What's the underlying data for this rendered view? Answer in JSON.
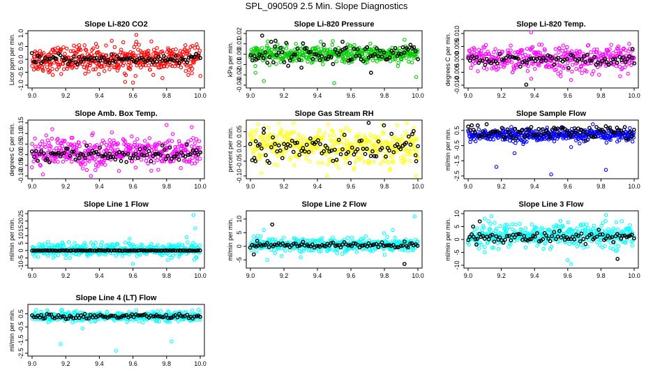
{
  "page": {
    "title": "SPL_090509  2.5 Min. Slope Diagnostics"
  },
  "chart_data": [
    {
      "type": "scatter",
      "title": "Slope Li-820 CO2",
      "ylabel": "Licor ppm per min.",
      "xlim": [
        9.0,
        10.0
      ],
      "ylim": [
        -1.0,
        1.0
      ],
      "xticks": [
        "9.0",
        "9.2",
        "9.4",
        "9.6",
        "9.8",
        "10.0"
      ],
      "yticks": [
        "-1.0",
        "-0.5",
        "0.0",
        "0.5",
        "1.0"
      ],
      "color": "#ff0000",
      "series": [
        {
          "values_desc": "main",
          "color": "#ff0000",
          "center": 0.0,
          "spread": 0.25,
          "n": 420,
          "outliers": [
            [
              9.55,
              -0.55
            ],
            [
              9.6,
              -0.9
            ],
            [
              9.38,
              0.6
            ],
            [
              9.62,
              0.95
            ],
            [
              9.1,
              -0.5
            ],
            [
              9.7,
              -0.4
            ],
            [
              9.28,
              0.55
            ]
          ]
        },
        {
          "values_desc": "reference",
          "color": "#000000",
          "center": 0.0,
          "spread": 0.1,
          "n": 90,
          "outliers": []
        }
      ]
    },
    {
      "type": "scatter",
      "title": "Slope Li-820 Pressure",
      "ylabel": "kPa per min.",
      "xlim": [
        9.0,
        10.0
      ],
      "ylim": [
        -0.03,
        0.02
      ],
      "xticks": [
        "9.0",
        "9.2",
        "9.4",
        "9.6",
        "9.8",
        "10.0"
      ],
      "yticks": [
        "-0.03",
        "-0.02",
        "-0.01",
        "0.00",
        "0.01",
        "0.02"
      ],
      "color": "#00cc00",
      "series": [
        {
          "values_desc": "main",
          "color": "#00cc00",
          "center": 0.0,
          "spread": 0.004,
          "n": 420,
          "outliers": [
            [
              9.5,
              -0.028
            ],
            [
              9.03,
              -0.018
            ],
            [
              9.08,
              -0.026
            ],
            [
              9.99,
              -0.022
            ],
            [
              9.42,
              0.012
            ],
            [
              9.92,
              0.014
            ]
          ]
        },
        {
          "values_desc": "reference",
          "color": "#000000",
          "center": 0.0,
          "spread": 0.005,
          "n": 90,
          "outliers": [
            [
              9.07,
              0.018
            ],
            [
              9.15,
              0.013
            ],
            [
              9.55,
              0.012
            ],
            [
              9.72,
              -0.018
            ]
          ]
        }
      ]
    },
    {
      "type": "scatter",
      "title": "Slope Li-820 Temp.",
      "ylabel": "degrees C per min.",
      "xlim": [
        9.0,
        10.0
      ],
      "ylim": [
        -0.01,
        0.01
      ],
      "xticks": [
        "9.0",
        "9.2",
        "9.4",
        "9.6",
        "9.8",
        "10.0"
      ],
      "yticks": [
        "-0.010",
        "-0.005",
        "0.000",
        "0.005",
        "0.010"
      ],
      "color": "#ff00ff",
      "series": [
        {
          "values_desc": "main",
          "color": "#ff00ff",
          "center": 0.0,
          "spread": 0.0025,
          "n": 380,
          "outliers": [
            [
              9.38,
              0.0105
            ],
            [
              9.38,
              -0.0075
            ],
            [
              9.62,
              -0.008
            ],
            [
              9.97,
              0.006
            ]
          ]
        },
        {
          "values_desc": "reference",
          "color": "#000000",
          "center": 0.0,
          "spread": 0.001,
          "n": 80,
          "outliers": [
            [
              9.35,
              -0.0098
            ],
            [
              9.99,
              0.004
            ]
          ]
        }
      ]
    },
    {
      "type": "scatter",
      "title": "Slope Amb. Box Temp.",
      "ylabel": "degrees C per min.",
      "xlim": [
        9.0,
        10.0
      ],
      "ylim": [
        -0.1,
        0.15
      ],
      "xticks": [
        "9.0",
        "9.2",
        "9.4",
        "9.6",
        "9.8",
        "10.0"
      ],
      "yticks": [
        "-0.10",
        "-0.05",
        "0.00",
        "0.05",
        "0.10",
        "0.15"
      ],
      "color": "#ff00ff",
      "series": [
        {
          "values_desc": "main",
          "color": "#ff00ff",
          "center": 0.01,
          "spread": 0.035,
          "n": 420,
          "outliers": [
            [
              9.35,
              -0.1
            ],
            [
              9.8,
              0.14
            ],
            [
              9.95,
              0.13
            ],
            [
              9.12,
              0.12
            ]
          ]
        },
        {
          "values_desc": "reference",
          "color": "#000000",
          "center": 0.0,
          "spread": 0.02,
          "n": 90,
          "outliers": []
        }
      ]
    },
    {
      "type": "scatter",
      "title": "Slope Gas Stream RH",
      "ylabel": "percent per min.",
      "xlim": [
        9.0,
        10.0
      ],
      "ylim": [
        -0.1,
        0.08
      ],
      "xticks": [
        "9.0",
        "9.2",
        "9.4",
        "9.6",
        "9.8",
        "10.0"
      ],
      "yticks": [
        "-0.10",
        "-0.05",
        "0.00",
        "0.05"
      ],
      "color": "#ffff00",
      "series": [
        {
          "values_desc": "main",
          "color": "#ffff00",
          "center": 0.0,
          "spread": 0.03,
          "n": 420,
          "outliers": []
        },
        {
          "values_desc": "reference",
          "color": "#000000",
          "center": 0.0,
          "spread": 0.03,
          "n": 90,
          "outliers": [
            [
              9.03,
              -0.05
            ],
            [
              9.08,
              0.06
            ],
            [
              9.99,
              -0.05
            ]
          ]
        }
      ]
    },
    {
      "type": "scatter",
      "title": "Slope Sample Flow",
      "ylabel": "ml/min per min.",
      "xlim": [
        9.0,
        10.0
      ],
      "ylim": [
        -2.5,
        1.0
      ],
      "xticks": [
        "9.0",
        "9.2",
        "9.4",
        "9.6",
        "9.8",
        "10.0"
      ],
      "yticks": [
        "-2.5",
        "-1.5",
        "-0.5",
        "0.5"
      ],
      "color": "#0000ff",
      "series": [
        {
          "values_desc": "main",
          "color": "#0000ff",
          "center": 0.2,
          "spread": 0.2,
          "n": 420,
          "outliers": [
            [
              9.17,
              -1.9
            ],
            [
              9.83,
              -2.1
            ],
            [
              9.5,
              -2.4
            ],
            [
              9.62,
              -0.6
            ],
            [
              9.28,
              -1.0
            ]
          ]
        },
        {
          "values_desc": "reference",
          "color": "#000000",
          "center": 0.4,
          "spread": 0.25,
          "n": 90,
          "outliers": []
        }
      ]
    },
    {
      "type": "scatter",
      "title": "Slope Line 1 Flow",
      "ylabel": "ml/min per min.",
      "xlim": [
        9.0,
        10.0
      ],
      "ylim": [
        -10,
        25
      ],
      "xticks": [
        "9.0",
        "9.2",
        "9.4",
        "9.6",
        "9.8",
        "10.0"
      ],
      "yticks": [
        "-10",
        "-5",
        "0",
        "5",
        "10",
        "15",
        "20",
        "25"
      ],
      "color": "#00ffff",
      "series": [
        {
          "values_desc": "main",
          "color": "#00ffff",
          "center": 0.5,
          "spread": 2.2,
          "n": 400,
          "outliers": [
            [
              9.96,
              24
            ],
            [
              9.97,
              15
            ],
            [
              9.92,
              9
            ],
            [
              9.6,
              -9
            ],
            [
              9.58,
              8
            ],
            [
              9.2,
              -5
            ]
          ]
        },
        {
          "values_desc": "reference",
          "color": "#000000",
          "center": 0.0,
          "spread": 0.1,
          "n": 90,
          "outliers": []
        }
      ]
    },
    {
      "type": "scatter",
      "title": "Slope Line 2 Flow",
      "ylabel": "ml/min per min.",
      "xlim": [
        9.0,
        10.0
      ],
      "ylim": [
        -7,
        12
      ],
      "xticks": [
        "9.0",
        "9.2",
        "9.4",
        "9.6",
        "9.8",
        "10.0"
      ],
      "yticks": [
        "-5",
        "0",
        "5",
        "10"
      ],
      "color": "#00ffff",
      "series": [
        {
          "values_desc": "main",
          "color": "#00ffff",
          "center": 0.5,
          "spread": 1.3,
          "n": 400,
          "outliers": [
            [
              9.98,
              11
            ],
            [
              9.1,
              -5
            ],
            [
              9.08,
              6
            ],
            [
              9.85,
              6
            ],
            [
              9.3,
              -4
            ]
          ]
        },
        {
          "values_desc": "reference",
          "color": "#000000",
          "center": 0.3,
          "spread": 0.6,
          "n": 90,
          "outliers": [
            [
              9.13,
              8
            ],
            [
              9.92,
              -6.5
            ],
            [
              9.02,
              -3
            ],
            [
              9.04,
              2
            ]
          ]
        }
      ]
    },
    {
      "type": "scatter",
      "title": "Slope Line 3 Flow",
      "ylabel": "ml/min per min.",
      "xlim": [
        9.0,
        10.0
      ],
      "ylim": [
        -10,
        10
      ],
      "xticks": [
        "9.0",
        "9.2",
        "9.4",
        "9.6",
        "9.8",
        "10.0"
      ],
      "yticks": [
        "-10",
        "-5",
        "0",
        "5",
        "10"
      ],
      "color": "#00ffff",
      "series": [
        {
          "values_desc": "main",
          "color": "#00ffff",
          "center": 1.5,
          "spread": 2.2,
          "n": 400,
          "outliers": [
            [
              9.62,
              -9.5
            ],
            [
              9.6,
              -8
            ],
            [
              9.1,
              -5
            ],
            [
              9.14,
              9
            ],
            [
              9.83,
              9.5
            ]
          ]
        },
        {
          "values_desc": "reference",
          "color": "#000000",
          "center": 1.0,
          "spread": 1.0,
          "n": 90,
          "outliers": [
            [
              9.07,
              7
            ],
            [
              9.03,
              5
            ],
            [
              9.9,
              -7.5
            ],
            [
              9.05,
              -2
            ]
          ]
        }
      ]
    },
    {
      "type": "scatter",
      "title": "Slope Line 4 (LT) Flow",
      "ylabel": "ml/min per min.",
      "xlim": [
        9.0,
        10.0
      ],
      "ylim": [
        -2.5,
        1.0
      ],
      "xticks": [
        "9.0",
        "9.2",
        "9.4",
        "9.6",
        "9.8",
        "10.0"
      ],
      "yticks": [
        "-2.5",
        "-1.5",
        "-0.5",
        "0.5"
      ],
      "color": "#00ffff",
      "series": [
        {
          "values_desc": "main",
          "color": "#00ffff",
          "center": 0.3,
          "spread": 0.18,
          "n": 400,
          "outliers": [
            [
              9.17,
              -1.8
            ],
            [
              9.83,
              -1.6
            ],
            [
              9.5,
              -2.3
            ],
            [
              9.3,
              -0.6
            ]
          ]
        },
        {
          "values_desc": "reference",
          "color": "#000000",
          "center": 0.3,
          "spread": 0.1,
          "n": 90,
          "outliers": []
        }
      ]
    }
  ]
}
